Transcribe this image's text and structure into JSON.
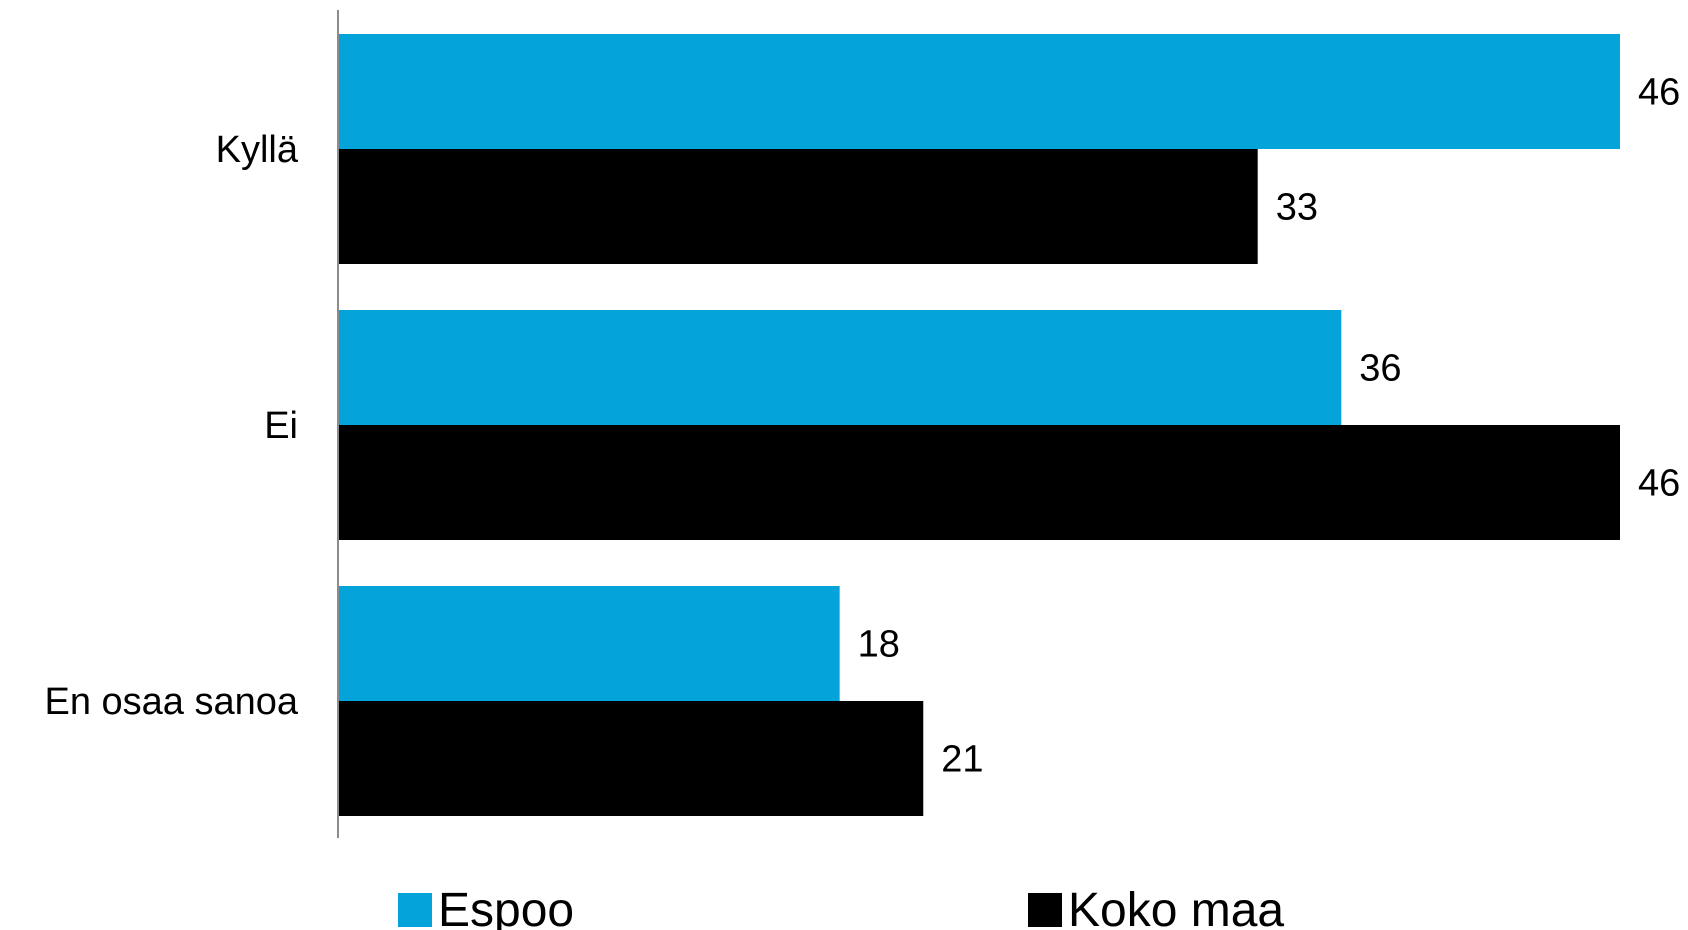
{
  "chart_data": {
    "type": "bar",
    "orientation": "horizontal",
    "categories": [
      "Kyllä",
      "Ei",
      "En osaa sanoa"
    ],
    "series": [
      {
        "name": "Espoo",
        "values": [
          46,
          36,
          18
        ],
        "color": "#04a3da"
      },
      {
        "name": "Koko maa",
        "values": [
          33,
          46,
          21
        ],
        "color": "#000000"
      }
    ],
    "title": "",
    "xlabel": "",
    "ylabel": "",
    "xlim": [
      0,
      46
    ],
    "grid": false,
    "legend_position": "bottom",
    "data_labels": true
  }
}
